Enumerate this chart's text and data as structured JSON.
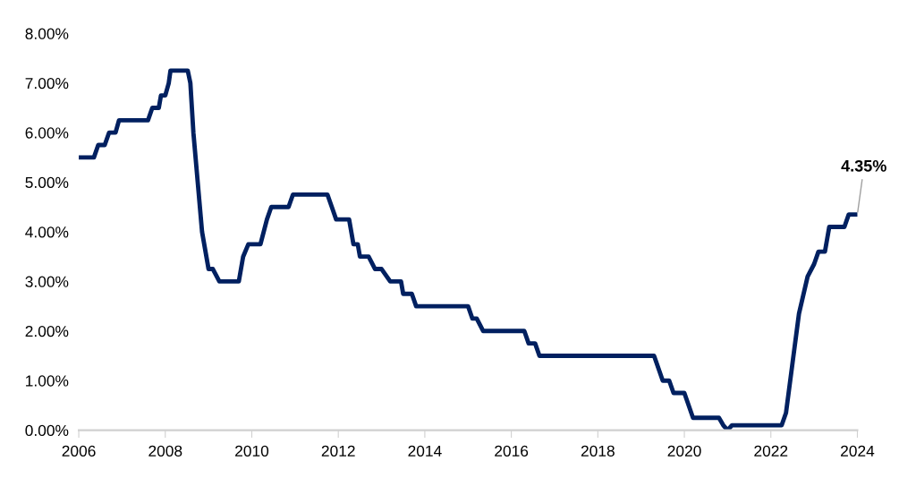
{
  "chart_data": {
    "type": "line",
    "x": [
      2006.0,
      2006.35,
      2006.45,
      2006.6,
      2006.7,
      2006.85,
      2006.93,
      2007.6,
      2007.7,
      2007.85,
      2007.9,
      2008.0,
      2008.08,
      2008.12,
      2008.52,
      2008.58,
      2008.65,
      2008.75,
      2008.85,
      2009.0,
      2009.1,
      2009.25,
      2009.7,
      2009.8,
      2009.92,
      2010.2,
      2010.35,
      2010.45,
      2010.85,
      2010.95,
      2011.75,
      2011.85,
      2011.95,
      2012.25,
      2012.35,
      2012.45,
      2012.5,
      2012.7,
      2012.85,
      2013.0,
      2013.2,
      2013.45,
      2013.5,
      2013.7,
      2013.8,
      2015.0,
      2015.1,
      2015.2,
      2015.35,
      2016.3,
      2016.4,
      2016.55,
      2016.65,
      2019.3,
      2019.5,
      2019.65,
      2019.75,
      2020.0,
      2020.2,
      2020.8,
      2020.9,
      2021.0,
      2021.1,
      2022.25,
      2022.35,
      2022.5,
      2022.65,
      2022.85,
      2023.0,
      2023.1,
      2023.25,
      2023.35,
      2023.7,
      2023.8,
      2024.0
    ],
    "series": [
      {
        "color": "#002060",
        "values": [
          5.5,
          5.5,
          5.75,
          5.75,
          6.0,
          6.0,
          6.25,
          6.25,
          6.5,
          6.5,
          6.75,
          6.75,
          7.0,
          7.25,
          7.25,
          7.0,
          6.0,
          5.0,
          4.0,
          3.25,
          3.25,
          3.0,
          3.0,
          3.5,
          3.75,
          3.75,
          4.25,
          4.5,
          4.5,
          4.75,
          4.75,
          4.5,
          4.25,
          4.25,
          3.75,
          3.75,
          3.5,
          3.5,
          3.25,
          3.25,
          3.0,
          3.0,
          2.75,
          2.75,
          2.5,
          2.5,
          2.25,
          2.25,
          2.0,
          2.0,
          1.75,
          1.75,
          1.5,
          1.5,
          1.0,
          1.0,
          0.75,
          0.75,
          0.25,
          0.25,
          0.1,
          0.0,
          0.1,
          0.1,
          0.35,
          1.35,
          2.35,
          3.1,
          3.35,
          3.6,
          3.6,
          4.1,
          4.1,
          4.35,
          4.35
        ]
      }
    ],
    "xlim": [
      2006,
      2024
    ],
    "xticks": [
      2006,
      2008,
      2010,
      2012,
      2014,
      2016,
      2018,
      2020,
      2022,
      2024
    ],
    "ylim": [
      0,
      8
    ],
    "yticks": [
      {
        "value": 0,
        "label": "0.00%"
      },
      {
        "value": 1,
        "label": "1.00%"
      },
      {
        "value": 2,
        "label": "2.00%"
      },
      {
        "value": 3,
        "label": "3.00%"
      },
      {
        "value": 4,
        "label": "4.00%"
      },
      {
        "value": 5,
        "label": "5.00%"
      },
      {
        "value": 6,
        "label": "6.00%"
      },
      {
        "value": 7,
        "label": "7.00%"
      },
      {
        "value": 8,
        "label": "8.00%"
      }
    ],
    "annotations": [
      {
        "text": "4.35%",
        "x": 2024,
        "y": 4.35
      }
    ],
    "grid": false,
    "legend": false,
    "marker": "none",
    "line_style": "solid"
  }
}
